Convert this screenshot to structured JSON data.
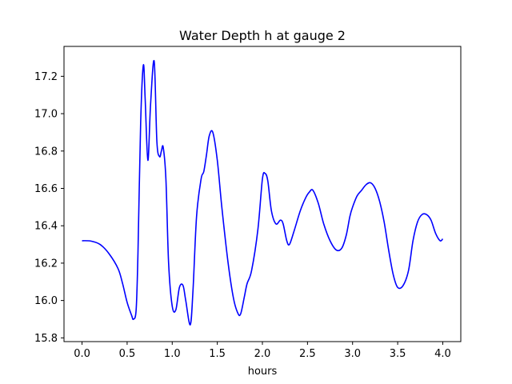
{
  "chart_data": {
    "type": "line",
    "title": "Water Depth h at gauge 2",
    "xlabel": "hours",
    "ylabel": "",
    "xlim": [
      -0.2,
      4.2
    ],
    "ylim": [
      15.78,
      17.36
    ],
    "x_ticks": [
      0.0,
      0.5,
      1.0,
      1.5,
      2.0,
      2.5,
      3.0,
      3.5,
      4.0
    ],
    "x_tick_labels": [
      "0.0",
      "0.5",
      "1.0",
      "1.5",
      "2.0",
      "2.5",
      "3.0",
      "3.5",
      "4.0"
    ],
    "y_ticks": [
      15.8,
      16.0,
      16.2,
      16.4,
      16.6,
      16.8,
      17.0,
      17.2
    ],
    "y_tick_labels": [
      "15.8",
      "16.0",
      "16.2",
      "16.4",
      "16.6",
      "16.8",
      "17.0",
      "17.2"
    ],
    "grid": false,
    "series": [
      {
        "color": "#0000ff",
        "x": [
          0.0,
          0.1,
          0.2,
          0.3,
          0.4,
          0.45,
          0.5,
          0.55,
          0.57,
          0.6,
          0.62,
          0.65,
          0.68,
          0.7,
          0.73,
          0.76,
          0.8,
          0.83,
          0.86,
          0.88,
          0.9,
          0.93,
          0.96,
          1.0,
          1.04,
          1.08,
          1.12,
          1.15,
          1.2,
          1.23,
          1.27,
          1.32,
          1.35,
          1.38,
          1.41,
          1.45,
          1.5,
          1.55,
          1.62,
          1.68,
          1.73,
          1.76,
          1.8,
          1.83,
          1.88,
          1.95,
          2.0,
          2.03,
          2.06,
          2.1,
          2.15,
          2.2,
          2.23,
          2.27,
          2.3,
          2.35,
          2.42,
          2.48,
          2.52,
          2.56,
          2.62,
          2.68,
          2.75,
          2.82,
          2.88,
          2.93,
          2.97,
          3.0,
          3.05,
          3.1,
          3.15,
          3.2,
          3.25,
          3.3,
          3.35,
          3.4,
          3.45,
          3.5,
          3.56,
          3.62,
          3.67,
          3.72,
          3.77,
          3.82,
          3.87,
          3.92,
          3.97,
          4.0
        ],
        "y": [
          16.32,
          16.318,
          16.3,
          16.25,
          16.17,
          16.09,
          15.99,
          15.92,
          15.9,
          15.95,
          16.25,
          16.95,
          17.26,
          17.08,
          16.75,
          17.05,
          17.28,
          16.85,
          16.77,
          16.8,
          16.82,
          16.65,
          16.2,
          15.97,
          15.95,
          16.07,
          16.08,
          16.0,
          15.87,
          16.05,
          16.45,
          16.65,
          16.69,
          16.78,
          16.88,
          16.9,
          16.75,
          16.5,
          16.2,
          16.01,
          15.93,
          15.93,
          16.02,
          16.09,
          16.16,
          16.38,
          16.65,
          16.68,
          16.64,
          16.48,
          16.41,
          16.43,
          16.41,
          16.32,
          16.3,
          16.37,
          16.48,
          16.55,
          16.58,
          16.59,
          16.52,
          16.41,
          16.32,
          16.27,
          16.28,
          16.35,
          16.45,
          16.5,
          16.56,
          16.59,
          16.62,
          16.63,
          16.6,
          16.53,
          16.42,
          16.27,
          16.14,
          16.07,
          16.08,
          16.16,
          16.32,
          16.42,
          16.46,
          16.46,
          16.43,
          16.36,
          16.32,
          16.33
        ]
      }
    ]
  }
}
